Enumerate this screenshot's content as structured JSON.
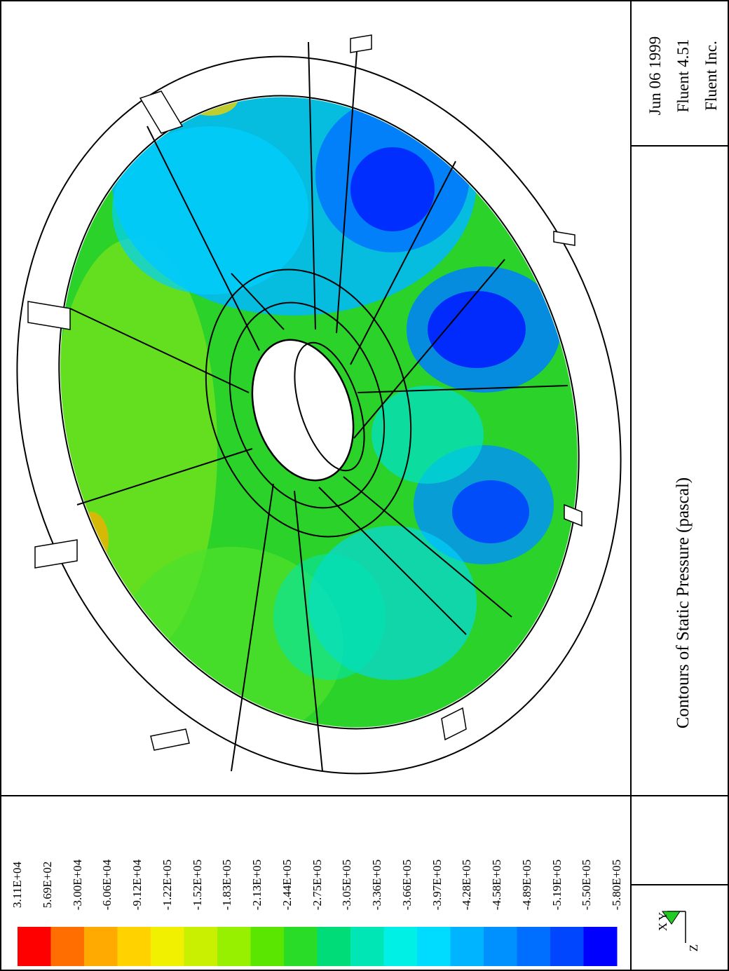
{
  "title": "Contours of Static Pressure (pascal)",
  "info": {
    "date": "Jun 06 1999",
    "version": "Fluent 4.51",
    "company": "Fluent Inc."
  },
  "axes_triad": {
    "z": "Z",
    "x": "X",
    "y": "Y"
  },
  "colormap": {
    "levels": [
      "3.11E+04",
      "5.69E+02",
      "-3.00E+04",
      "-6.06E+04",
      "-9.12E+04",
      "-1.22E+05",
      "-1.52E+05",
      "-1.83E+05",
      "-2.13E+05",
      "-2.44E+05",
      "-2.75E+05",
      "-3.05E+05",
      "-3.36E+05",
      "-3.66E+05",
      "-3.97E+05",
      "-4.28E+05",
      "-4.58E+05",
      "-4.89E+05",
      "-5.19E+05",
      "-5.50E+05",
      "-5.80E+05"
    ],
    "colors": [
      "#ff0000",
      "#ff6e00",
      "#ffaa00",
      "#ffd200",
      "#f0f000",
      "#c8f000",
      "#96f000",
      "#5ae600",
      "#28dc28",
      "#00dc78",
      "#00e6b4",
      "#00f0e6",
      "#00dcff",
      "#00b4ff",
      "#0091ff",
      "#006eff",
      "#0046ff",
      "#0000ff"
    ]
  }
}
